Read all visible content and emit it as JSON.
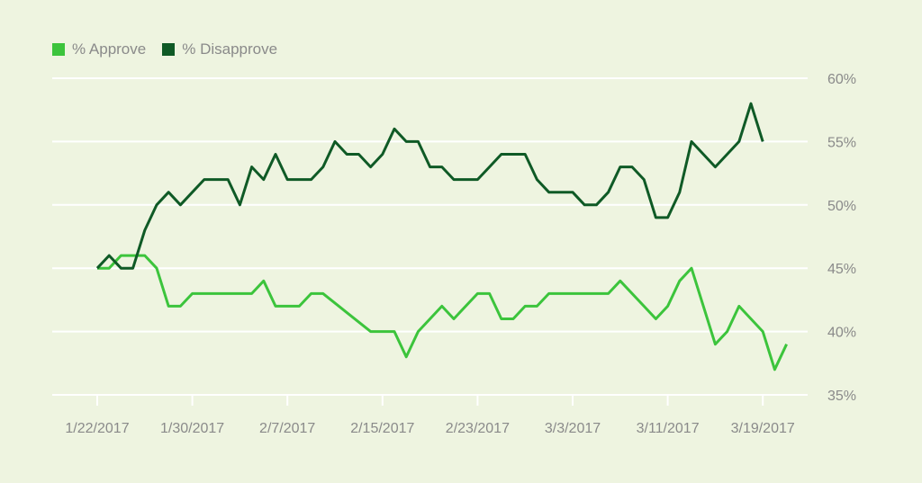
{
  "colors": {
    "background": "#eef4e0",
    "approve": "#3cc43c",
    "disapprove": "#0f5a26",
    "grid": "#ffffff",
    "text": "#8a8a8a"
  },
  "chart_data": {
    "type": "line",
    "legend": [
      "% Approve",
      "% Disapprove"
    ],
    "legend_position": "top-left",
    "grid": true,
    "xlabel": "",
    "ylabel": "",
    "x_tick_labels": [
      "1/22/2017",
      "1/30/2017",
      "2/7/2017",
      "2/15/2017",
      "2/23/2017",
      "3/3/2017",
      "3/11/2017",
      "3/19/2017"
    ],
    "y_tick_labels": [
      "60%",
      "55%",
      "50%",
      "45%",
      "40%",
      "35%"
    ],
    "y_ticks": [
      60,
      55,
      50,
      45,
      40,
      35
    ],
    "ylim": [
      35,
      60
    ],
    "x_start_date": "2017-01-22",
    "x_end_date": "2017-03-19",
    "series": [
      {
        "name": "% Approve",
        "color": "#3cc43c",
        "points": [
          [
            "2017-01-22",
            45
          ],
          [
            "2017-01-23",
            45
          ],
          [
            "2017-01-24",
            46
          ],
          [
            "2017-01-25",
            46
          ],
          [
            "2017-01-26",
            46
          ],
          [
            "2017-01-27",
            45
          ],
          [
            "2017-01-28",
            42
          ],
          [
            "2017-01-29",
            42
          ],
          [
            "2017-01-30",
            43
          ],
          [
            "2017-01-31",
            43
          ],
          [
            "2017-02-01",
            43
          ],
          [
            "2017-02-02",
            43
          ],
          [
            "2017-02-03",
            43
          ],
          [
            "2017-02-04",
            43
          ],
          [
            "2017-02-05",
            44
          ],
          [
            "2017-02-06",
            42
          ],
          [
            "2017-02-07",
            42
          ],
          [
            "2017-02-08",
            42
          ],
          [
            "2017-02-09",
            43
          ],
          [
            "2017-02-10",
            43
          ],
          [
            "2017-02-14",
            40
          ],
          [
            "2017-02-15",
            40
          ],
          [
            "2017-02-16",
            40
          ],
          [
            "2017-02-17",
            38
          ],
          [
            "2017-02-18",
            40
          ],
          [
            "2017-02-20",
            42
          ],
          [
            "2017-02-21",
            41
          ],
          [
            "2017-02-23",
            43
          ],
          [
            "2017-02-24",
            43
          ],
          [
            "2017-02-25",
            41
          ],
          [
            "2017-02-26",
            41
          ],
          [
            "2017-02-27",
            42
          ],
          [
            "2017-02-28",
            42
          ],
          [
            "2017-03-01",
            43
          ],
          [
            "2017-03-06",
            43
          ],
          [
            "2017-03-07",
            44
          ],
          [
            "2017-03-09",
            42
          ],
          [
            "2017-03-10",
            41
          ],
          [
            "2017-03-11",
            42
          ],
          [
            "2017-03-12",
            44
          ],
          [
            "2017-03-13",
            45
          ],
          [
            "2017-03-15",
            39
          ],
          [
            "2017-03-16",
            40
          ],
          [
            "2017-03-17",
            42
          ],
          [
            "2017-03-18",
            41
          ],
          [
            "2017-03-19",
            40
          ],
          [
            "2017-03-20",
            37
          ],
          [
            "2017-03-21",
            39
          ]
        ]
      },
      {
        "name": "% Disapprove",
        "color": "#0f5a26",
        "points": [
          [
            "2017-01-22",
            45
          ],
          [
            "2017-01-23",
            46
          ],
          [
            "2017-01-24",
            45
          ],
          [
            "2017-01-25",
            45
          ],
          [
            "2017-01-26",
            48
          ],
          [
            "2017-01-27",
            50
          ],
          [
            "2017-01-28",
            51
          ],
          [
            "2017-01-29",
            50
          ],
          [
            "2017-01-30",
            51
          ],
          [
            "2017-01-31",
            52
          ],
          [
            "2017-02-01",
            52
          ],
          [
            "2017-02-02",
            52
          ],
          [
            "2017-02-03",
            50
          ],
          [
            "2017-02-04",
            53
          ],
          [
            "2017-02-05",
            52
          ],
          [
            "2017-02-06",
            54
          ],
          [
            "2017-02-07",
            52
          ],
          [
            "2017-02-08",
            52
          ],
          [
            "2017-02-09",
            52
          ],
          [
            "2017-02-10",
            53
          ],
          [
            "2017-02-11",
            55
          ],
          [
            "2017-02-12",
            54
          ],
          [
            "2017-02-13",
            54
          ],
          [
            "2017-02-14",
            53
          ],
          [
            "2017-02-15",
            54
          ],
          [
            "2017-02-16",
            56
          ],
          [
            "2017-02-17",
            55
          ],
          [
            "2017-02-18",
            55
          ],
          [
            "2017-02-19",
            53
          ],
          [
            "2017-02-20",
            53
          ],
          [
            "2017-02-21",
            52
          ],
          [
            "2017-02-22",
            52
          ],
          [
            "2017-02-23",
            52
          ],
          [
            "2017-02-24",
            53
          ],
          [
            "2017-02-25",
            54
          ],
          [
            "2017-02-26",
            54
          ],
          [
            "2017-02-27",
            54
          ],
          [
            "2017-02-28",
            52
          ],
          [
            "2017-03-01",
            51
          ],
          [
            "2017-03-02",
            51
          ],
          [
            "2017-03-03",
            51
          ],
          [
            "2017-03-04",
            50
          ],
          [
            "2017-03-05",
            50
          ],
          [
            "2017-03-06",
            51
          ],
          [
            "2017-03-07",
            53
          ],
          [
            "2017-03-08",
            53
          ],
          [
            "2017-03-09",
            52
          ],
          [
            "2017-03-10",
            49
          ],
          [
            "2017-03-11",
            49
          ],
          [
            "2017-03-12",
            51
          ],
          [
            "2017-03-13",
            55
          ],
          [
            "2017-03-15",
            53
          ],
          [
            "2017-03-17",
            55
          ],
          [
            "2017-03-18",
            58
          ],
          [
            "2017-03-19",
            55
          ]
        ]
      }
    ]
  }
}
